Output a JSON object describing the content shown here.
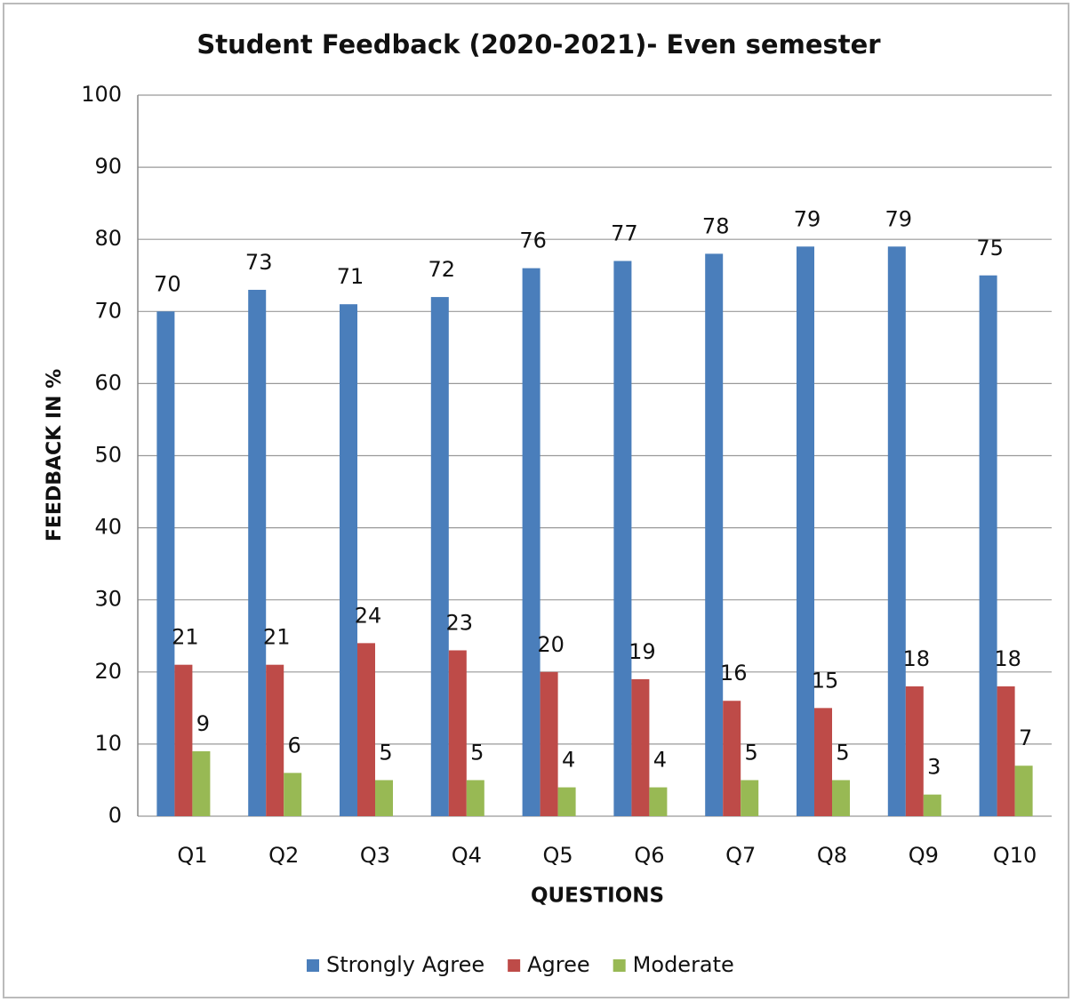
{
  "chart_data": {
    "type": "bar",
    "title": "Student Feedback (2020-2021)- Even semester",
    "x_label": "QUESTIONS",
    "y_label": "FEEDBACK IN  %",
    "categories": [
      "Q1",
      "Q2",
      "Q3",
      "Q4",
      "Q5",
      "Q6",
      "Q7",
      "Q8",
      "Q9",
      "Q10"
    ],
    "series": [
      {
        "name": "Strongly Agree",
        "color": "#4a7ebb",
        "values": [
          70,
          73,
          71,
          72,
          76,
          77,
          78,
          79,
          79,
          75
        ]
      },
      {
        "name": "Agree",
        "color": "#be4b48",
        "values": [
          21,
          21,
          24,
          23,
          20,
          19,
          16,
          15,
          18,
          18
        ]
      },
      {
        "name": "Moderate",
        "color": "#98b954",
        "values": [
          9,
          6,
          5,
          5,
          4,
          4,
          5,
          5,
          3,
          7
        ]
      }
    ],
    "ylim": [
      0,
      100
    ],
    "yticks": [
      0,
      10,
      20,
      30,
      40,
      50,
      60,
      70,
      80,
      90,
      100
    ],
    "grid": true,
    "legend": "bottom"
  }
}
